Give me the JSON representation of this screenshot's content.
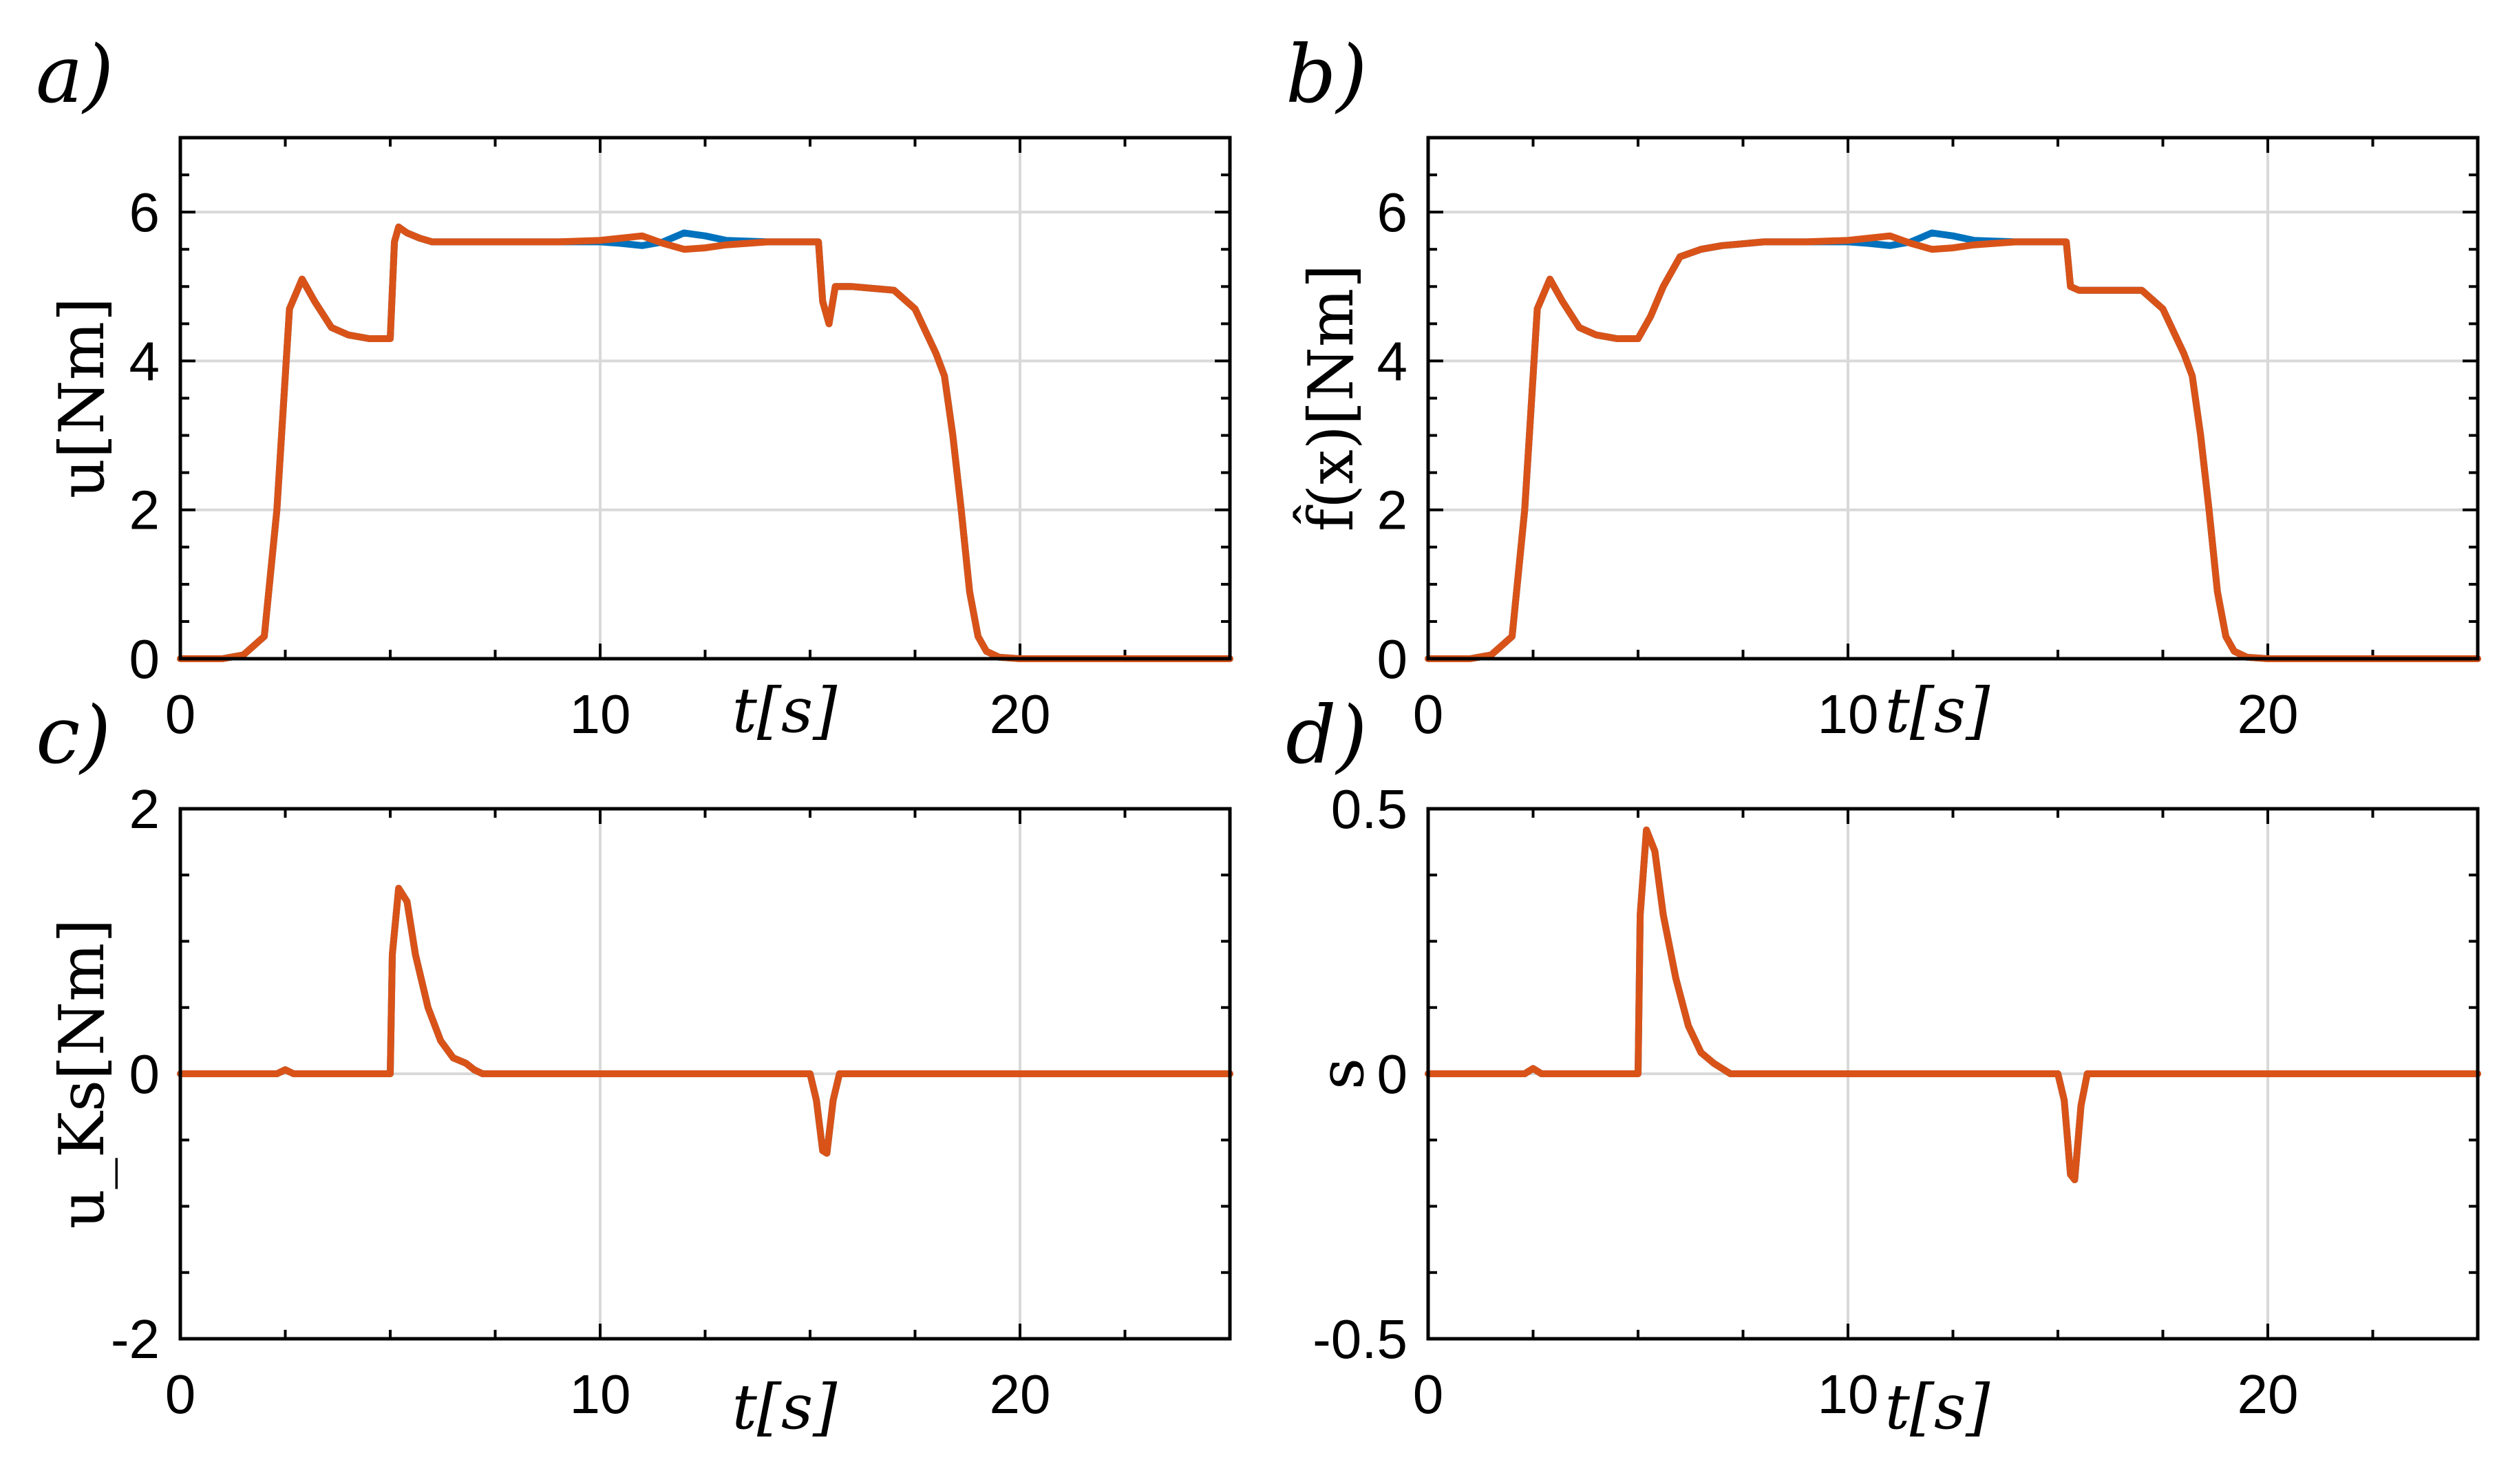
{
  "colors": {
    "blue": "#0072BD",
    "orange": "#D95319"
  },
  "chart_data": [
    {
      "type": "line",
      "panel": "a)",
      "tag": "a)",
      "xlabel": "t[s]",
      "ylabel": "u[Nm]",
      "xlim": [
        0,
        25
      ],
      "ylim": [
        0,
        7
      ],
      "xticks": [
        0,
        10,
        20
      ],
      "yticks": [
        0,
        2,
        4,
        6
      ],
      "ytick_labels": [
        "0",
        "2",
        "4",
        "6"
      ],
      "series": [
        {
          "name": "blue",
          "color": "#0072BD",
          "x": [
            0,
            1,
            1.5,
            2,
            2.3,
            2.6,
            2.9,
            3.2,
            3.6,
            4,
            4.5,
            5,
            5.1,
            5.2,
            5.4,
            5.7,
            6,
            7,
            8,
            9,
            10,
            10.5,
            11,
            11.5,
            12,
            12.5,
            13,
            14,
            15,
            15.2,
            15.3,
            15.45,
            15.6,
            16,
            17,
            17.5,
            18,
            18.2,
            18.4,
            18.6,
            18.8,
            19,
            19.2,
            19.5,
            20,
            25
          ],
          "y": [
            0,
            0,
            0.05,
            0.3,
            2.0,
            4.7,
            5.1,
            4.8,
            4.45,
            4.35,
            4.3,
            4.3,
            5.6,
            5.8,
            5.72,
            5.65,
            5.6,
            5.6,
            5.6,
            5.6,
            5.6,
            5.58,
            5.55,
            5.6,
            5.72,
            5.68,
            5.62,
            5.6,
            5.6,
            5.6,
            4.8,
            4.5,
            5.0,
            5.0,
            4.95,
            4.7,
            4.1,
            3.8,
            3.0,
            2.0,
            0.9,
            0.3,
            0.1,
            0.02,
            0,
            0
          ]
        },
        {
          "name": "orange",
          "color": "#D95319",
          "x": [
            0,
            1,
            1.5,
            2,
            2.3,
            2.6,
            2.9,
            3.2,
            3.6,
            4,
            4.5,
            5,
            5.1,
            5.2,
            5.4,
            5.7,
            6,
            7,
            8,
            9,
            10,
            10.5,
            11,
            11.5,
            12,
            12.5,
            13,
            14,
            15,
            15.2,
            15.3,
            15.45,
            15.6,
            16,
            17,
            17.5,
            18,
            18.2,
            18.4,
            18.6,
            18.8,
            19,
            19.2,
            19.5,
            20,
            25
          ],
          "y": [
            0,
            0,
            0.05,
            0.3,
            2.0,
            4.7,
            5.1,
            4.8,
            4.45,
            4.35,
            4.3,
            4.3,
            5.6,
            5.8,
            5.72,
            5.65,
            5.6,
            5.6,
            5.6,
            5.6,
            5.62,
            5.65,
            5.68,
            5.58,
            5.5,
            5.52,
            5.56,
            5.6,
            5.6,
            5.6,
            4.8,
            4.5,
            5.0,
            5.0,
            4.95,
            4.7,
            4.1,
            3.8,
            3.0,
            2.0,
            0.9,
            0.3,
            0.1,
            0.02,
            0,
            0
          ]
        }
      ]
    },
    {
      "type": "line",
      "panel": "b)",
      "tag": "b)",
      "xlabel": "t[s]",
      "ylabel": "f̂(x)[Nm]",
      "xlim": [
        0,
        25
      ],
      "ylim": [
        0,
        7
      ],
      "xticks": [
        0,
        10,
        20
      ],
      "yticks": [
        0,
        2,
        4,
        6
      ],
      "ytick_labels": [
        "0",
        "2",
        "4",
        "6"
      ],
      "series": [
        {
          "name": "blue",
          "color": "#0072BD",
          "x": [
            0,
            1,
            1.5,
            2,
            2.3,
            2.6,
            2.9,
            3.2,
            3.6,
            4,
            4.5,
            5,
            5.3,
            5.6,
            6,
            6.5,
            7,
            8,
            9,
            10,
            10.5,
            11,
            11.5,
            12,
            12.5,
            13,
            14,
            15,
            15.2,
            15.3,
            15.5,
            16,
            17,
            17.5,
            18,
            18.2,
            18.4,
            18.6,
            18.8,
            19,
            19.2,
            19.5,
            20,
            25
          ],
          "y": [
            0,
            0,
            0.05,
            0.3,
            2.0,
            4.7,
            5.1,
            4.8,
            4.45,
            4.35,
            4.3,
            4.3,
            4.6,
            5.0,
            5.4,
            5.5,
            5.55,
            5.6,
            5.6,
            5.6,
            5.58,
            5.55,
            5.6,
            5.72,
            5.68,
            5.62,
            5.6,
            5.6,
            5.6,
            5.0,
            4.95,
            4.95,
            4.95,
            4.7,
            4.1,
            3.8,
            3.0,
            2.0,
            0.9,
            0.3,
            0.1,
            0.02,
            0,
            0
          ]
        },
        {
          "name": "orange",
          "color": "#D95319",
          "x": [
            0,
            1,
            1.5,
            2,
            2.3,
            2.6,
            2.9,
            3.2,
            3.6,
            4,
            4.5,
            5,
            5.3,
            5.6,
            6,
            6.5,
            7,
            8,
            9,
            10,
            10.5,
            11,
            11.5,
            12,
            12.5,
            13,
            14,
            15,
            15.2,
            15.3,
            15.5,
            16,
            17,
            17.5,
            18,
            18.2,
            18.4,
            18.6,
            18.8,
            19,
            19.2,
            19.5,
            20,
            25
          ],
          "y": [
            0,
            0,
            0.05,
            0.3,
            2.0,
            4.7,
            5.1,
            4.8,
            4.45,
            4.35,
            4.3,
            4.3,
            4.6,
            5.0,
            5.4,
            5.5,
            5.55,
            5.6,
            5.6,
            5.62,
            5.65,
            5.68,
            5.58,
            5.5,
            5.52,
            5.56,
            5.6,
            5.6,
            5.6,
            5.0,
            4.95,
            4.95,
            4.95,
            4.7,
            4.1,
            3.8,
            3.0,
            2.0,
            0.9,
            0.3,
            0.1,
            0.02,
            0,
            0
          ]
        }
      ]
    },
    {
      "type": "line",
      "panel": "c)",
      "tag": "c)",
      "xlabel": "t[s]",
      "ylabel": "u_Ks[Nm]",
      "xlim": [
        0,
        25
      ],
      "ylim": [
        -2,
        2
      ],
      "xticks": [
        0,
        10,
        20
      ],
      "yticks": [
        -2,
        0,
        2
      ],
      "ytick_labels": [
        "-2",
        "0",
        "2"
      ],
      "series": [
        {
          "name": "blue",
          "color": "#0072BD",
          "x": [
            0,
            2.3,
            2.5,
            2.7,
            5,
            5.05,
            5.2,
            5.4,
            5.6,
            5.9,
            6.2,
            6.5,
            6.8,
            7,
            7.2,
            15,
            15.15,
            15.3,
            15.4,
            15.55,
            15.7,
            25
          ],
          "y": [
            0,
            0,
            0.03,
            0,
            0,
            0.9,
            1.4,
            1.3,
            0.9,
            0.5,
            0.25,
            0.12,
            0.08,
            0.03,
            0,
            0,
            -0.2,
            -0.58,
            -0.6,
            -0.2,
            0,
            0
          ]
        },
        {
          "name": "orange",
          "color": "#D95319",
          "x": [
            0,
            2.3,
            2.5,
            2.7,
            5,
            5.05,
            5.2,
            5.4,
            5.6,
            5.9,
            6.2,
            6.5,
            6.8,
            7,
            7.2,
            15,
            15.15,
            15.3,
            15.4,
            15.55,
            15.7,
            25
          ],
          "y": [
            0,
            0,
            0.03,
            0,
            0,
            0.9,
            1.4,
            1.3,
            0.9,
            0.5,
            0.25,
            0.12,
            0.08,
            0.03,
            0,
            0,
            -0.2,
            -0.58,
            -0.6,
            -0.2,
            0,
            0
          ]
        }
      ]
    },
    {
      "type": "line",
      "panel": "d)",
      "tag": "d)",
      "xlabel": "t[s]",
      "ylabel": "s",
      "xlim": [
        0,
        25
      ],
      "ylim": [
        -0.5,
        0.5
      ],
      "xticks": [
        0,
        10,
        20
      ],
      "yticks": [
        -0.5,
        0,
        0.5
      ],
      "ytick_labels": [
        "-0.5",
        "0",
        "0.5"
      ],
      "series": [
        {
          "name": "blue",
          "color": "#0072BD",
          "x": [
            0,
            2.3,
            2.5,
            2.7,
            5,
            5.05,
            5.2,
            5.4,
            5.6,
            5.9,
            6.2,
            6.5,
            6.8,
            7,
            7.2,
            15,
            15.15,
            15.3,
            15.4,
            15.55,
            15.7,
            25
          ],
          "y": [
            0,
            0,
            0.01,
            0,
            0,
            0.3,
            0.46,
            0.42,
            0.3,
            0.18,
            0.09,
            0.04,
            0.02,
            0.01,
            0,
            0,
            -0.05,
            -0.19,
            -0.2,
            -0.06,
            0,
            0
          ]
        },
        {
          "name": "orange",
          "color": "#D95319",
          "x": [
            0,
            2.3,
            2.5,
            2.7,
            5,
            5.05,
            5.2,
            5.4,
            5.6,
            5.9,
            6.2,
            6.5,
            6.8,
            7,
            7.2,
            15,
            15.15,
            15.3,
            15.4,
            15.55,
            15.7,
            25
          ],
          "y": [
            0,
            0,
            0.01,
            0,
            0,
            0.3,
            0.46,
            0.42,
            0.3,
            0.18,
            0.09,
            0.04,
            0.02,
            0.01,
            0,
            0,
            -0.05,
            -0.19,
            -0.2,
            -0.06,
            0,
            0
          ]
        }
      ]
    }
  ]
}
